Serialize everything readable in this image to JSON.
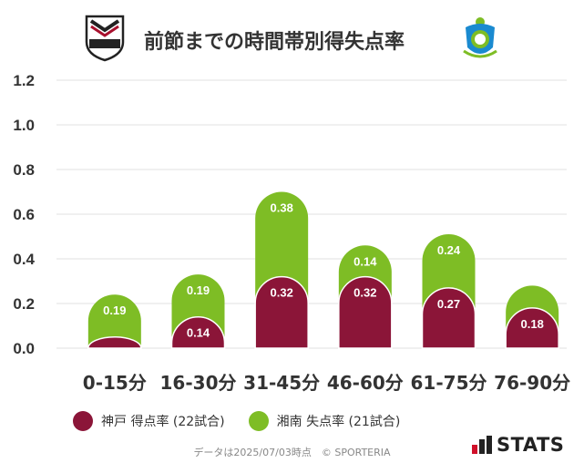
{
  "title": "前節までの時間帯別得失点率",
  "logos": {
    "left": {
      "name": "vissel-kobe-logo",
      "text": "VISSEL"
    },
    "right": {
      "name": "shonan-bellmare-logo"
    }
  },
  "chart_data": {
    "type": "bar",
    "stacked": true,
    "categories": [
      "0-15分",
      "16-30分",
      "31-45分",
      "46-60分",
      "61-75分",
      "76-90分"
    ],
    "series": [
      {
        "name": "神戸 得点率 (22試合)",
        "color": "#8b1538",
        "values": [
          0.05,
          0.14,
          0.32,
          0.32,
          0.27,
          0.18
        ],
        "labels": [
          "",
          "0.14",
          "0.32",
          "0.32",
          "0.27",
          "0.18"
        ]
      },
      {
        "name": "湘南 失点率 (21試合)",
        "color": "#7ebd25",
        "values": [
          0.19,
          0.19,
          0.38,
          0.14,
          0.24,
          0.1
        ],
        "labels": [
          "0.19",
          "0.19",
          "0.38",
          "0.14",
          "0.24",
          ""
        ]
      }
    ],
    "yticks": [
      "1.2",
      "1.0",
      "0.8",
      "0.6",
      "0.4",
      "0.2",
      "0.0"
    ],
    "ylim": [
      0,
      1.2
    ],
    "grid": true
  },
  "legend": [
    {
      "label": "神戸 得点率 (22試合)",
      "color": "#8b1538"
    },
    {
      "label": "湘南 失点率 (21試合)",
      "color": "#7ebd25"
    }
  ],
  "footer": "データは2025/07/03時点　© SPORTERIA",
  "stats_logo": {
    "text": "STATS"
  }
}
